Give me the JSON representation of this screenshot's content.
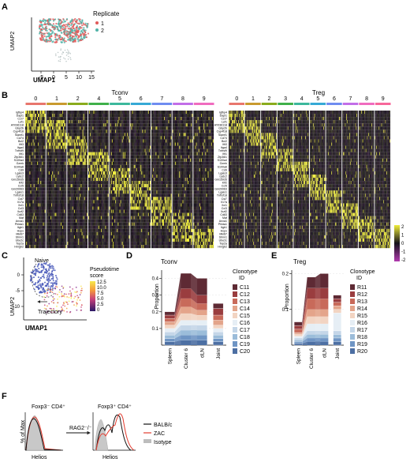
{
  "panels": {
    "A": {
      "label": "A",
      "legend_title": "Replicate",
      "legend": [
        {
          "name": "1",
          "color": "#e05a5a"
        },
        {
          "name": "2",
          "color": "#4fb3a8"
        }
      ],
      "xlabel": "UMAP1",
      "ylabel": "UMAP2",
      "xticks": [
        "-5",
        "0",
        "5",
        "10",
        "15"
      ]
    },
    "B": {
      "label": "B",
      "tconv_title": "Tconv",
      "treg_title": "Treg",
      "tconv_clusters": [
        "0",
        "1",
        "2",
        "4",
        "5",
        "6",
        "7",
        "8",
        "9"
      ],
      "treg_clusters": [
        "0",
        "1",
        "2",
        "3",
        "4",
        "5",
        "6",
        "7",
        "8",
        "9"
      ],
      "cluster_colors": [
        "#e8766d",
        "#c99a2e",
        "#8aab1c",
        "#3fb04a",
        "#3cb89c",
        "#36a9d6",
        "#6f8cf1",
        "#c26ee8",
        "#f06cbf",
        "#f7679a"
      ],
      "genes": [
        "Igfbp4",
        "Dapl1",
        "Ccr7",
        "Lef1",
        "AY036118",
        "Gbp2b",
        "Cyp4f18",
        "Slamf1",
        "Cd74",
        "Bcl2",
        "Ifit3",
        "Itga4",
        "Tnfrsf9",
        "Ifit1",
        "Zfp36l1",
        "S100a4",
        "Gzmk",
        "S100a6",
        "Cd9",
        "Lgals3",
        "Ly6c2",
        "Gm15935",
        "Klf2",
        "Ccl5",
        "Gm20063",
        "Lgals1",
        "Tnfrsf18",
        "Cst7",
        "Il17a",
        "Xcl1",
        "Ccl3",
        "Ikzf2",
        "Cd83",
        "Maf",
        "Anxa1",
        "Phlda1",
        "Itgb1",
        "Hopx",
        "Mki67",
        "Stmn1",
        "Ube2c",
        "Top2a",
        "Hmgb2"
      ],
      "scale_ticks": [
        "2",
        "1",
        "0",
        "-1",
        "-2"
      ]
    },
    "C": {
      "label": "C",
      "naive_label": "Naive",
      "trajectory_label": "Trajectory",
      "legend_title_1": "Pseudotime",
      "legend_title_2": "score",
      "legend_ticks": [
        "12.5",
        "10.0",
        "7.5",
        "5.0",
        "2.5",
        "0"
      ],
      "xlabel": "UMAP1",
      "ylabel": "UMAP2",
      "yticks": [
        "0",
        "-5",
        "-10"
      ]
    },
    "D": {
      "label": "D",
      "title": "Tconv",
      "legend_title_1": "Clonotype",
      "legend_title_2": "ID",
      "ylabel": "Proportion",
      "yticks": [
        "0.1",
        "0.2",
        "0.3",
        "0.4"
      ],
      "ylim": [
        0,
        0.45
      ],
      "clonotypes": [
        "C11",
        "C12",
        "C13",
        "C14",
        "C15",
        "C16",
        "C17",
        "C18",
        "C19",
        "C20"
      ]
    },
    "E": {
      "label": "E",
      "title": "Treg",
      "legend_title_1": "Clonotype",
      "legend_title_2": "ID",
      "ylabel": "Proportion",
      "yticks": [
        "0.1",
        "0.2"
      ],
      "ylim": [
        0,
        0.21
      ],
      "clonotypes": [
        "R11",
        "R12",
        "R13",
        "R14",
        "R15",
        "R16",
        "R17",
        "R18",
        "R19",
        "R20"
      ]
    },
    "F": {
      "label": "F",
      "left_title": "Foxp3⁻ CD4⁺",
      "right_title": "Foxp3⁺ CD4⁺",
      "arrow_label": "RAG2⁻/⁻",
      "ylabel": "% of Max",
      "xlabel": "Helios",
      "legend": [
        {
          "name": "BALB/c",
          "color": "#111111"
        },
        {
          "name": "ZAC",
          "color": "#e33b2e"
        },
        {
          "name": "Isotype",
          "color": "#bdbdbd"
        }
      ]
    }
  },
  "chart_data": [
    {
      "type": "area",
      "title": "Tconv",
      "ylabel": "Proportion",
      "ylim": [
        0,
        0.45
      ],
      "categories": [
        "Spleen",
        "Cluster 6",
        "dLN",
        "Joint"
      ],
      "series": [
        {
          "name": "C20",
          "values": [
            0.02,
            0.03,
            0.03,
            0.02
          ]
        },
        {
          "name": "C19",
          "values": [
            0.02,
            0.03,
            0.03,
            0.02
          ]
        },
        {
          "name": "C18",
          "values": [
            0.02,
            0.03,
            0.03,
            0.02
          ]
        },
        {
          "name": "C17",
          "values": [
            0.02,
            0.03,
            0.03,
            0.02
          ]
        },
        {
          "name": "C16",
          "values": [
            0.02,
            0.03,
            0.03,
            0.02
          ]
        },
        {
          "name": "C15",
          "values": [
            0.02,
            0.04,
            0.03,
            0.02
          ]
        },
        {
          "name": "C14",
          "values": [
            0.02,
            0.04,
            0.03,
            0.03
          ]
        },
        {
          "name": "C13",
          "values": [
            0.02,
            0.05,
            0.04,
            0.03
          ]
        },
        {
          "name": "C12",
          "values": [
            0.02,
            0.06,
            0.05,
            0.04
          ]
        },
        {
          "name": "C11",
          "values": [
            0.02,
            0.09,
            0.1,
            0.03
          ]
        }
      ]
    },
    {
      "type": "area",
      "title": "Treg",
      "ylabel": "Proportion",
      "ylim": [
        0,
        0.21
      ],
      "categories": [
        "Spleen",
        "Cluster 6",
        "dLN",
        "Joint"
      ],
      "series": [
        {
          "name": "R20",
          "values": [
            0.005,
            0.01,
            0.01,
            0.01
          ]
        },
        {
          "name": "R19",
          "values": [
            0.005,
            0.01,
            0.01,
            0.01
          ]
        },
        {
          "name": "R18",
          "values": [
            0.005,
            0.01,
            0.01,
            0.01
          ]
        },
        {
          "name": "R17",
          "values": [
            0.005,
            0.01,
            0.01,
            0.01
          ]
        },
        {
          "name": "R16",
          "values": [
            0.005,
            0.02,
            0.02,
            0.05
          ]
        },
        {
          "name": "R15",
          "values": [
            0.005,
            0.02,
            0.02,
            0.01
          ]
        },
        {
          "name": "R14",
          "values": [
            0.005,
            0.02,
            0.02,
            0.01
          ]
        },
        {
          "name": "R13",
          "values": [
            0.01,
            0.03,
            0.03,
            0.01
          ]
        },
        {
          "name": "R12",
          "values": [
            0.01,
            0.03,
            0.03,
            0.01
          ]
        },
        {
          "name": "R11",
          "values": [
            0.01,
            0.03,
            0.04,
            0.01
          ]
        }
      ]
    }
  ]
}
